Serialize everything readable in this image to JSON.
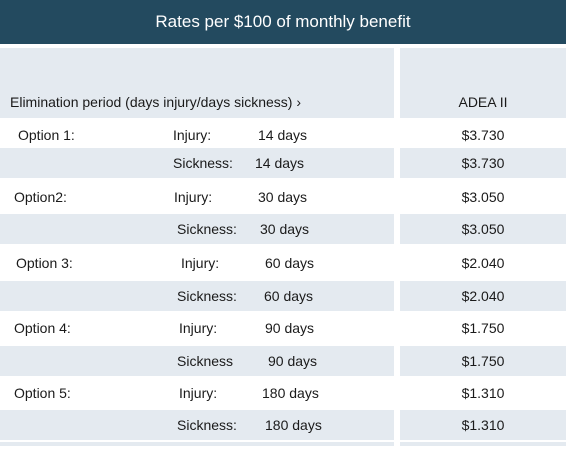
{
  "title": "Rates per $100 of monthly benefit",
  "header": {
    "elimination_label": "Elimination period (days injury/days sickness) ›",
    "plan_label": "ADEA II"
  },
  "rows": [
    {
      "option": "Option 1:",
      "type": "Injury:",
      "days": "14 days",
      "rate": "$3.730"
    },
    {
      "option": "",
      "type": "Sickness:",
      "days": "14 days",
      "rate": "$3.730"
    },
    {
      "option": "Option2:",
      "type": "Injury:",
      "days": "30 days",
      "rate": "$3.050"
    },
    {
      "option": "",
      "type": "Sickness:",
      "days": "30 days",
      "rate": "$3.050"
    },
    {
      "option": "Option 3:",
      "type": "Injury:",
      "days": "60 days",
      "rate": "$2.040"
    },
    {
      "option": "",
      "type": "Sickness:",
      "days": "60 days",
      "rate": "$2.040"
    },
    {
      "option": "Option 4:",
      "type": "Injury:",
      "days": "90 days",
      "rate": "$1.750"
    },
    {
      "option": "",
      "type": "Sickness",
      "days": "90 days",
      "rate": "$1.750"
    },
    {
      "option": "Option 5:",
      "type": "Injury:",
      "days": "180 days",
      "rate": "$1.310"
    },
    {
      "option": "",
      "type": "Sickness:",
      "days": "180 days",
      "rate": "$1.310"
    }
  ],
  "colors": {
    "header_bg": "#234a5f",
    "shade": "#e4eaf0"
  }
}
